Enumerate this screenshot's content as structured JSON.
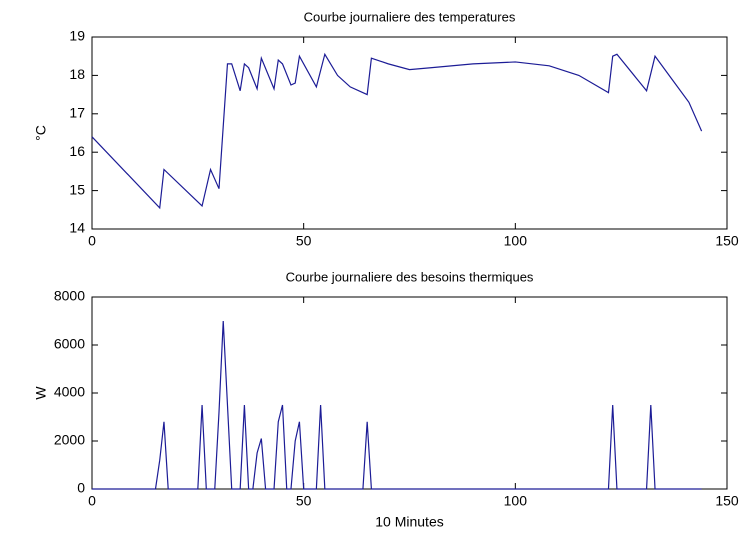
{
  "chart_data": [
    {
      "type": "line",
      "title": "Courbe journaliere des temperatures",
      "ylabel": "°C",
      "x": [
        0,
        16,
        17,
        26,
        28,
        30,
        32,
        33,
        35,
        36,
        37,
        39,
        40,
        43,
        44,
        45,
        47,
        48,
        49,
        53,
        55,
        58,
        61,
        65,
        66,
        70,
        75,
        80,
        90,
        100,
        108,
        115,
        122,
        123,
        124,
        131,
        133,
        137,
        141,
        144
      ],
      "series": [
        {
          "color": "#1c1c96",
          "values": [
            16.4,
            14.55,
            15.55,
            14.6,
            15.55,
            15.05,
            18.3,
            18.3,
            17.6,
            18.3,
            18.2,
            17.65,
            18.45,
            17.65,
            18.4,
            18.3,
            17.75,
            17.8,
            18.5,
            17.7,
            18.55,
            18.0,
            17.7,
            17.5,
            18.45,
            18.3,
            18.15,
            18.2,
            18.3,
            18.35,
            18.25,
            18.0,
            17.55,
            18.5,
            18.55,
            17.6,
            18.5,
            17.9,
            17.3,
            16.55
          ]
        }
      ],
      "xlim": [
        0,
        150
      ],
      "xticks": [
        0,
        50,
        100,
        150
      ],
      "ylim": [
        14,
        19
      ],
      "yticks": [
        14,
        15,
        16,
        17,
        18,
        19
      ]
    },
    {
      "type": "line",
      "title": "Courbe journaliere des besoins thermiques",
      "ylabel": "W",
      "xlabel": "10 Minutes",
      "x": [
        0,
        15,
        16,
        17,
        18,
        25,
        26,
        27,
        29,
        30,
        31,
        32,
        33,
        35,
        36,
        37,
        38,
        39,
        40,
        41,
        43,
        44,
        45,
        46,
        47,
        48,
        49,
        50,
        53,
        54,
        55,
        64,
        65,
        66,
        122,
        123,
        124,
        131,
        132,
        133,
        144
      ],
      "series": [
        {
          "color": "#1c1c96",
          "values": [
            0,
            0,
            1200,
            2800,
            0,
            0,
            3500,
            0,
            0,
            3200,
            7000,
            3500,
            0,
            0,
            3500,
            0,
            0,
            1500,
            2100,
            0,
            0,
            2800,
            3500,
            0,
            0,
            2000,
            2800,
            0,
            0,
            3500,
            0,
            0,
            2800,
            0,
            0,
            3500,
            0,
            0,
            3500,
            0,
            0
          ]
        }
      ],
      "xlim": [
        0,
        150
      ],
      "xticks": [
        0,
        50,
        100,
        150
      ],
      "ylim": [
        0,
        8000
      ],
      "yticks": [
        0,
        2000,
        4000,
        6000,
        8000
      ]
    }
  ]
}
